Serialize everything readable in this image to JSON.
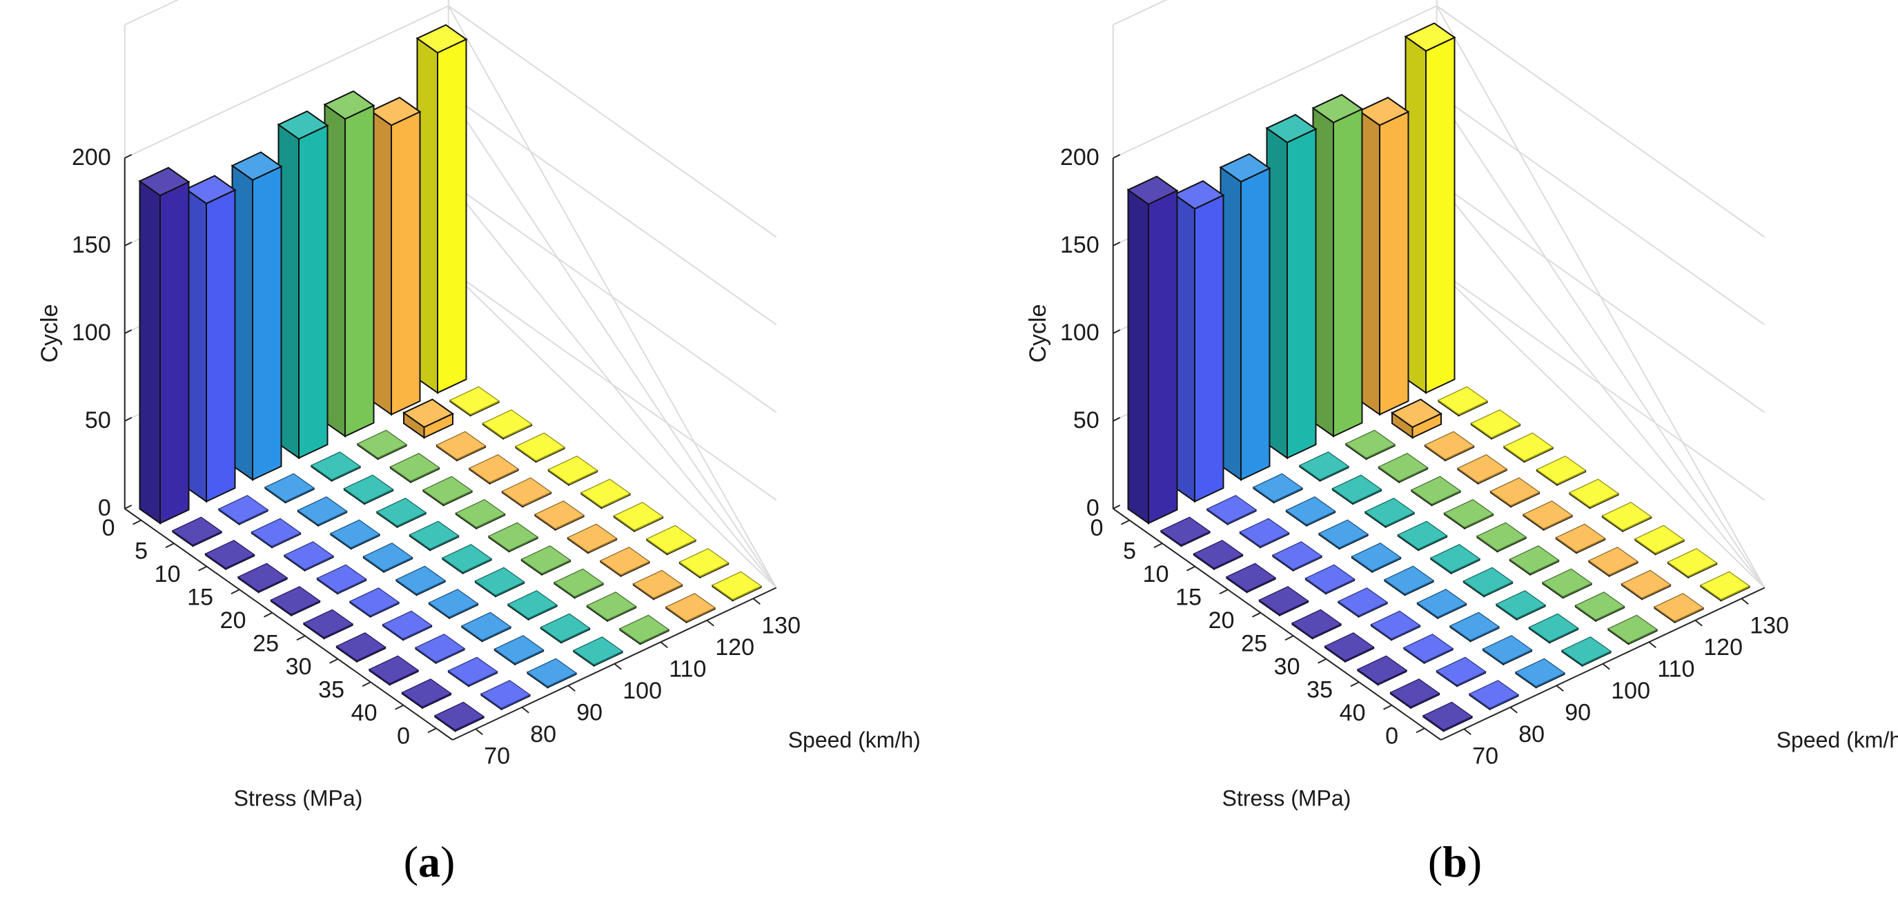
{
  "figure": {
    "panels": [
      {
        "label": "(a)",
        "label_letter": "a"
      },
      {
        "label": "(b)",
        "label_letter": "b"
      }
    ]
  },
  "colors": {
    "70": "#3b2aa8",
    "80": "#4a5cf2",
    "90": "#2b93e6",
    "100": "#1db8ab",
    "110": "#79c555",
    "120": "#fbb542",
    "130": "#fafa1d"
  },
  "chart_data": [
    {
      "type": "bar3d",
      "panel": "a",
      "title": "",
      "zlabel": "Cycle",
      "xlabel": "Stress (MPa)",
      "ylabel": "Speed (km/h)",
      "stress_ticks": [
        "0",
        "5",
        "10",
        "15",
        "20",
        "25",
        "30",
        "35",
        "40",
        "0"
      ],
      "speed_ticks": [
        "70",
        "80",
        "90",
        "100",
        "110",
        "120",
        "130"
      ],
      "z_ticks": [
        "0",
        "50",
        "100",
        "150",
        "200"
      ],
      "zlim": [
        0,
        200
      ],
      "series": [
        {
          "name": "70",
          "values": [
            187,
            0,
            0,
            0,
            0,
            0,
            0,
            0,
            0,
            0
          ]
        },
        {
          "name": "80",
          "values": [
            170,
            0,
            0,
            0,
            0,
            0,
            0,
            0,
            0,
            0
          ]
        },
        {
          "name": "90",
          "values": [
            171,
            0,
            0,
            0,
            0,
            0,
            0,
            0,
            0,
            0
          ]
        },
        {
          "name": "100",
          "values": [
            182,
            0,
            0,
            0,
            0,
            0,
            0,
            0,
            0,
            0
          ]
        },
        {
          "name": "110",
          "values": [
            181,
            0,
            0,
            0,
            0,
            0,
            0,
            0,
            0,
            0
          ]
        },
        {
          "name": "120",
          "values": [
            165,
            6,
            0,
            0,
            0,
            0,
            0,
            0,
            0,
            0
          ]
        },
        {
          "name": "130",
          "values": [
            194,
            0,
            0,
            0,
            0,
            0,
            0,
            0,
            0,
            0
          ]
        }
      ]
    },
    {
      "type": "bar3d",
      "panel": "b",
      "title": "",
      "zlabel": "Cycle",
      "xlabel": "Stress (MPa)",
      "ylabel": "Speed (km/h)",
      "stress_ticks": [
        "0",
        "5",
        "10",
        "15",
        "20",
        "25",
        "30",
        "35",
        "40",
        "0"
      ],
      "speed_ticks": [
        "70",
        "80",
        "90",
        "100",
        "110",
        "120",
        "130"
      ],
      "z_ticks": [
        "0",
        "50",
        "100",
        "150",
        "200"
      ],
      "zlim": [
        0,
        200
      ],
      "series": [
        {
          "name": "70",
          "values": [
            182,
            0,
            0,
            0,
            0,
            0,
            0,
            0,
            0,
            0
          ]
        },
        {
          "name": "80",
          "values": [
            167,
            0,
            0,
            0,
            0,
            0,
            0,
            0,
            0,
            0
          ]
        },
        {
          "name": "90",
          "values": [
            170,
            0,
            0,
            0,
            0,
            0,
            0,
            0,
            0,
            0
          ]
        },
        {
          "name": "100",
          "values": [
            180,
            0,
            0,
            0,
            0,
            0,
            0,
            0,
            0,
            0
          ]
        },
        {
          "name": "110",
          "values": [
            179,
            0,
            0,
            0,
            0,
            0,
            0,
            0,
            0,
            0
          ]
        },
        {
          "name": "120",
          "values": [
            165,
            6,
            0,
            0,
            0,
            0,
            0,
            0,
            0,
            0
          ]
        },
        {
          "name": "130",
          "values": [
            195,
            0,
            0,
            0,
            0,
            0,
            0,
            0,
            0,
            0
          ]
        }
      ]
    }
  ]
}
